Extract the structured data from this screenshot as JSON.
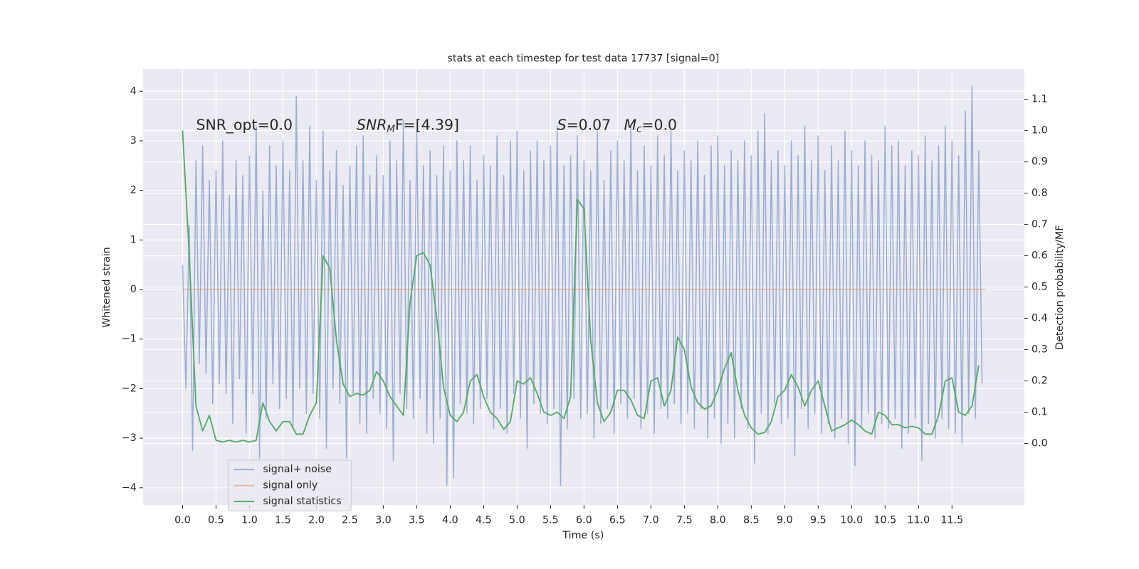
{
  "chart_data": {
    "type": "line",
    "title": "stats at each timestep for test data 17737 [signal=0]",
    "xlabel": "Time (s)",
    "ylabel": "Whitened strain",
    "y2label": "Detection probability/MF",
    "annotations": [
      {
        "text": "SNR_opt=0.0"
      },
      {
        "parts": [
          "SNR",
          "M",
          "F=[4.39]"
        ]
      },
      {
        "parts": [
          "S",
          "=0.07"
        ]
      },
      {
        "parts": [
          "M",
          "c",
          "=0.0"
        ]
      }
    ],
    "xlim": [
      -0.59,
      12.58
    ],
    "ylim": [
      -4.35,
      4.45
    ],
    "y2lim": [
      -0.197,
      1.197
    ],
    "xticks": [
      {
        "value": 0,
        "label": "0.0"
      },
      0.5,
      {
        "value": 1,
        "label": "1.0"
      },
      1.5,
      {
        "value": 2,
        "label": "2.0"
      },
      2.5,
      {
        "value": 3,
        "label": "3.0"
      },
      3.5,
      {
        "value": 4,
        "label": "4.0"
      },
      4.5,
      {
        "value": 5,
        "label": "5.0"
      },
      5.5,
      {
        "value": 6,
        "label": "6.0"
      },
      6.5,
      {
        "value": 7,
        "label": "7.0"
      },
      7.5,
      {
        "value": 8,
        "label": "8.0"
      },
      8.5,
      {
        "value": 9,
        "label": "9.0"
      },
      9.5,
      {
        "value": 10,
        "label": "10.0"
      },
      10.5,
      {
        "value": 11,
        "label": "11.0"
      },
      11.5
    ],
    "yticks": [
      {
        "value": -4,
        "label": "−4"
      },
      {
        "value": -3,
        "label": "−3"
      },
      {
        "value": -2,
        "label": "−2"
      },
      {
        "value": -1,
        "label": "−1"
      },
      0,
      1,
      2,
      3,
      4
    ],
    "y2ticks": [
      {
        "value": 0,
        "label": "0.0"
      },
      0.1,
      0.2,
      0.3,
      0.4,
      0.5,
      0.6,
      0.7,
      0.8,
      0.9,
      {
        "value": 1,
        "label": "1.0"
      },
      1.1
    ],
    "grid": true,
    "legend": "lower left",
    "series": [
      {
        "name": "signal+ noise",
        "color": "#4c72b0",
        "alpha": 0.5,
        "x": [
          0,
          0.05,
          0.1,
          0.15,
          0.2,
          0.25,
          0.3,
          0.35,
          0.4,
          0.45,
          0.5,
          0.55,
          0.6,
          0.65,
          0.7,
          0.75,
          0.8,
          0.85,
          0.9,
          0.95,
          1,
          1.05,
          1.1,
          1.15,
          1.2,
          1.25,
          1.3,
          1.35,
          1.4,
          1.45,
          1.5,
          1.55,
          1.6,
          1.65,
          1.7,
          1.75,
          1.8,
          1.85,
          1.9,
          1.95,
          2,
          2.05,
          2.1,
          2.15,
          2.2,
          2.25,
          2.3,
          2.35,
          2.4,
          2.45,
          2.5,
          2.55,
          2.6,
          2.65,
          2.7,
          2.75,
          2.8,
          2.85,
          2.9,
          2.95,
          3,
          3.05,
          3.1,
          3.15,
          3.2,
          3.25,
          3.3,
          3.35,
          3.4,
          3.45,
          3.5,
          3.55,
          3.6,
          3.65,
          3.7,
          3.75,
          3.8,
          3.85,
          3.9,
          3.95,
          4,
          4.05,
          4.1,
          4.15,
          4.2,
          4.25,
          4.3,
          4.35,
          4.4,
          4.45,
          4.5,
          4.55,
          4.6,
          4.65,
          4.7,
          4.75,
          4.8,
          4.85,
          4.9,
          4.95,
          5,
          5.05,
          5.1,
          5.15,
          5.2,
          5.25,
          5.3,
          5.35,
          5.4,
          5.45,
          5.5,
          5.55,
          5.6,
          5.65,
          5.7,
          5.75,
          5.8,
          5.85,
          5.9,
          5.95,
          6,
          6.05,
          6.1,
          6.15,
          6.2,
          6.25,
          6.3,
          6.35,
          6.4,
          6.45,
          6.5,
          6.55,
          6.6,
          6.65,
          6.7,
          6.75,
          6.8,
          6.85,
          6.9,
          6.95,
          7,
          7.05,
          7.1,
          7.15,
          7.2,
          7.25,
          7.3,
          7.35,
          7.4,
          7.45,
          7.5,
          7.55,
          7.6,
          7.65,
          7.7,
          7.75,
          7.8,
          7.85,
          7.9,
          7.95,
          8,
          8.05,
          8.1,
          8.15,
          8.2,
          8.25,
          8.3,
          8.35,
          8.4,
          8.45,
          8.5,
          8.55,
          8.6,
          8.65,
          8.7,
          8.75,
          8.8,
          8.85,
          8.9,
          8.95,
          9,
          9.05,
          9.1,
          9.15,
          9.2,
          9.25,
          9.3,
          9.35,
          9.4,
          9.45,
          9.5,
          9.55,
          9.6,
          9.65,
          9.7,
          9.75,
          9.8,
          9.85,
          9.9,
          9.95,
          10,
          10.05,
          10.1,
          10.15,
          10.2,
          10.25,
          10.3,
          10.35,
          10.4,
          10.45,
          10.5,
          10.55,
          10.6,
          10.65,
          10.7,
          10.75,
          10.8,
          10.85,
          10.9,
          10.95,
          11,
          11.05,
          11.1,
          11.15,
          11.2,
          11.25,
          11.3,
          11.35,
          11.4,
          11.45,
          11.5,
          11.55,
          11.6,
          11.65,
          11.7,
          11.75,
          11.8,
          11.85,
          11.9,
          11.95
        ],
        "values": [
          0.5,
          -2.0,
          1.3,
          -3.25,
          2.6,
          -1.5,
          2.9,
          -1.7,
          2.2,
          -2.3,
          2.4,
          -1.9,
          3.0,
          -2.1,
          1.9,
          -2.7,
          2.6,
          -1.8,
          2.3,
          -2.9,
          2.7,
          -2.1,
          3.3,
          -3.4,
          2.0,
          -2.6,
          2.9,
          -1.9,
          2.5,
          -2.4,
          3.0,
          -2.2,
          2.4,
          -2.8,
          3.9,
          -2.0,
          2.6,
          -2.5,
          3.3,
          -2.1,
          2.2,
          -2.6,
          3.2,
          -3.2,
          2.4,
          -2.0,
          2.8,
          -2.3,
          2.1,
          -3.4,
          2.5,
          -2.1,
          2.9,
          -2.7,
          3.1,
          -2.9,
          2.3,
          -2.2,
          2.7,
          -2.5,
          2.3,
          -2.8,
          3.0,
          -3.45,
          2.6,
          -2.1,
          3.4,
          -2.4,
          2.2,
          -2.6,
          3.2,
          -2.2,
          2.5,
          -2.9,
          2.8,
          -3.1,
          2.3,
          -2.6,
          2.9,
          -3.95,
          2.4,
          -3.8,
          3.0,
          -2.3,
          2.6,
          -2.5,
          2.9,
          -2.7,
          2.2,
          -2.4,
          2.7,
          -2.2,
          2.5,
          -2.8,
          3.1,
          -2.4,
          2.3,
          -2.9,
          3.0,
          -2.1,
          3.2,
          -2.6,
          2.4,
          -3.2,
          2.8,
          -2.3,
          3.0,
          -2.5,
          2.6,
          -2.7,
          2.9,
          -2.4,
          3.3,
          -3.95,
          2.5,
          -2.8,
          2.7,
          -2.2,
          3.1,
          -2.6,
          2.6,
          -2.5,
          2.4,
          -3.0,
          3.2,
          -2.7,
          2.2,
          -2.4,
          2.8,
          -2.9,
          3.0,
          -2.3,
          2.6,
          -2.6,
          3.3,
          -2.2,
          2.4,
          -2.8,
          2.9,
          -2.5,
          2.5,
          -2.9,
          3.1,
          -2.4,
          2.7,
          -2.6,
          3.2,
          -2.3,
          2.4,
          -2.7,
          2.8,
          -2.5,
          2.6,
          -2.8,
          3.0,
          -2.4,
          2.3,
          -3.0,
          2.9,
          -2.6,
          3.1,
          -3.1,
          2.5,
          -2.7,
          2.8,
          -3.0,
          2.6,
          -2.4,
          3.0,
          -2.8,
          2.7,
          -3.5,
          3.2,
          -2.5,
          3.55,
          -2.9,
          2.6,
          -2.3,
          2.8,
          -2.7,
          2.5,
          -2.6,
          3.0,
          -3.35,
          2.7,
          -2.4,
          3.3,
          -2.8,
          2.6,
          -2.5,
          3.1,
          -2.9,
          2.4,
          -2.7,
          2.9,
          -3.0,
          2.6,
          -2.6,
          3.2,
          -3.1,
          2.8,
          -3.55,
          2.5,
          -2.8,
          3.0,
          -2.5,
          2.7,
          -3.0,
          2.6,
          -2.7,
          3.3,
          -2.8,
          2.9,
          -2.6,
          3.0,
          -3.2,
          2.5,
          -2.9,
          2.8,
          -2.6,
          2.7,
          -3.45,
          3.1,
          -2.7,
          2.6,
          -3.0,
          2.9,
          -2.6,
          3.3,
          -2.8,
          3.0,
          -2.9,
          2.7,
          -3.1,
          3.6,
          -2.5,
          4.1,
          -2.6,
          2.8,
          -1.9
        ]
      },
      {
        "name": "signal only",
        "color": "#dd8452",
        "alpha": 0.5,
        "x": [
          0,
          12
        ],
        "values": [
          0,
          0
        ]
      },
      {
        "name": "signal statistics",
        "color": "#55a868",
        "axis": "y2",
        "x": [
          0,
          0.1,
          0.2,
          0.3,
          0.4,
          0.5,
          0.6,
          0.7,
          0.8,
          0.9,
          1,
          1.1,
          1.2,
          1.3,
          1.4,
          1.5,
          1.6,
          1.7,
          1.8,
          1.9,
          2,
          2.1,
          2.2,
          2.3,
          2.4,
          2.5,
          2.6,
          2.7,
          2.8,
          2.9,
          3,
          3.1,
          3.2,
          3.3,
          3.4,
          3.5,
          3.6,
          3.7,
          3.8,
          3.9,
          4,
          4.1,
          4.2,
          4.3,
          4.4,
          4.5,
          4.6,
          4.7,
          4.8,
          4.9,
          5,
          5.1,
          5.2,
          5.3,
          5.4,
          5.5,
          5.6,
          5.7,
          5.8,
          5.9,
          6,
          6.1,
          6.2,
          6.3,
          6.4,
          6.5,
          6.6,
          6.7,
          6.8,
          6.9,
          7,
          7.1,
          7.2,
          7.3,
          7.4,
          7.5,
          7.6,
          7.7,
          7.8,
          7.9,
          8,
          8.1,
          8.2,
          8.3,
          8.4,
          8.5,
          8.6,
          8.7,
          8.8,
          8.9,
          9,
          9.1,
          9.2,
          9.3,
          9.4,
          9.5,
          9.6,
          9.7,
          9.8,
          9.9,
          10,
          10.1,
          10.2,
          10.3,
          10.4,
          10.5,
          10.6,
          10.7,
          10.8,
          10.9,
          11,
          11.1,
          11.2,
          11.3,
          11.4,
          11.5,
          11.6,
          11.7,
          11.8,
          11.9
        ],
        "values": [
          1.0,
          0.6,
          0.12,
          0.04,
          0.09,
          0.01,
          0.005,
          0.01,
          0.005,
          0.01,
          0.005,
          0.01,
          0.13,
          0.07,
          0.04,
          0.07,
          0.07,
          0.03,
          0.03,
          0.09,
          0.13,
          0.6,
          0.56,
          0.33,
          0.19,
          0.15,
          0.16,
          0.155,
          0.17,
          0.23,
          0.2,
          0.15,
          0.12,
          0.09,
          0.45,
          0.6,
          0.61,
          0.57,
          0.4,
          0.18,
          0.09,
          0.07,
          0.1,
          0.2,
          0.22,
          0.15,
          0.1,
          0.08,
          0.045,
          0.07,
          0.2,
          0.19,
          0.21,
          0.16,
          0.1,
          0.09,
          0.1,
          0.08,
          0.15,
          0.78,
          0.75,
          0.33,
          0.13,
          0.07,
          0.1,
          0.17,
          0.17,
          0.14,
          0.09,
          0.08,
          0.2,
          0.21,
          0.12,
          0.17,
          0.34,
          0.3,
          0.18,
          0.13,
          0.11,
          0.12,
          0.17,
          0.24,
          0.29,
          0.17,
          0.09,
          0.05,
          0.03,
          0.035,
          0.07,
          0.15,
          0.17,
          0.22,
          0.18,
          0.12,
          0.17,
          0.2,
          0.12,
          0.04,
          0.05,
          0.06,
          0.075,
          0.06,
          0.04,
          0.03,
          0.1,
          0.09,
          0.06,
          0.06,
          0.05,
          0.055,
          0.05,
          0.03,
          0.03,
          0.09,
          0.2,
          0.21,
          0.1,
          0.09,
          0.12,
          0.25
        ]
      }
    ]
  }
}
